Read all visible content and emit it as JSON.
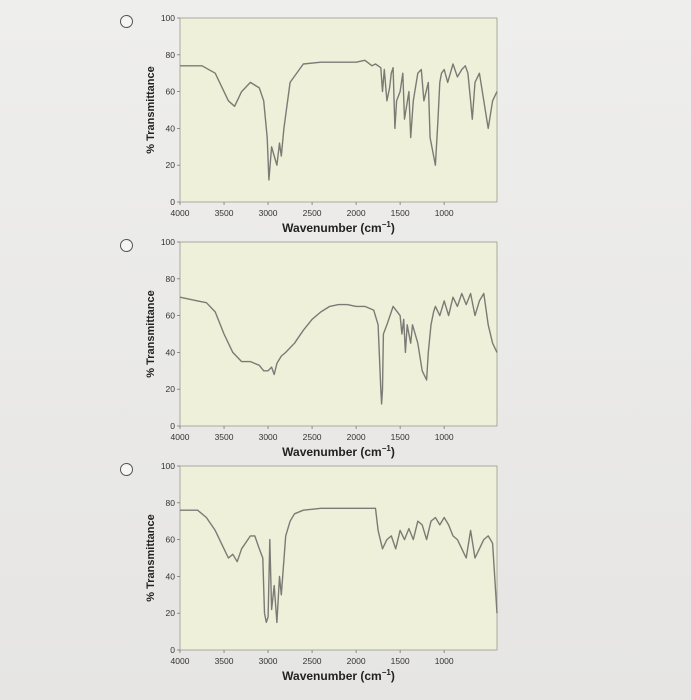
{
  "chart_data": [
    {
      "type": "line",
      "xlabel": "Wavenumber (cm",
      "xlabel_sup": "−1",
      "xlabel_close": ")",
      "ylabel": "% Transmittance",
      "xlim": [
        4000,
        400
      ],
      "ylim": [
        0,
        100
      ],
      "xticks": [
        "4000",
        "3500",
        "3000",
        "2500",
        "2000",
        "1500",
        "1000"
      ],
      "yticks": [
        "0",
        "20",
        "40",
        "60",
        "80",
        "100"
      ],
      "grid": false,
      "series": [
        {
          "x": [
            4000,
            3750,
            3600,
            3450,
            3380,
            3300,
            3200,
            3100,
            3050,
            3010,
            2990,
            2960,
            2930,
            2900,
            2870,
            2850,
            2820,
            2750,
            2600,
            2400,
            2200,
            2000,
            1900,
            1820,
            1780,
            1720,
            1700,
            1680,
            1650,
            1620,
            1600,
            1580,
            1560,
            1540,
            1500,
            1470,
            1450,
            1400,
            1380,
            1350,
            1300,
            1260,
            1230,
            1180,
            1160,
            1100,
            1070,
            1050,
            1030,
            1000,
            960,
            900,
            850,
            800,
            760,
            730,
            700,
            680,
            650,
            600,
            550,
            500,
            450,
            400
          ],
          "y": [
            74,
            74,
            70,
            55,
            52,
            60,
            65,
            62,
            55,
            35,
            12,
            30,
            25,
            20,
            32,
            25,
            40,
            65,
            75,
            76,
            76,
            76,
            77,
            74,
            75,
            73,
            60,
            72,
            55,
            62,
            70,
            73,
            40,
            55,
            60,
            70,
            45,
            60,
            35,
            55,
            70,
            72,
            55,
            65,
            35,
            20,
            45,
            65,
            70,
            72,
            65,
            75,
            68,
            72,
            74,
            70,
            55,
            45,
            65,
            70,
            55,
            40,
            55,
            60
          ]
        }
      ]
    },
    {
      "type": "line",
      "xlabel": "Wavenumber (cm",
      "xlabel_sup": "−1",
      "xlabel_close": ")",
      "ylabel": "% Transmittance",
      "xlim": [
        4000,
        400
      ],
      "ylim": [
        0,
        100
      ],
      "xticks": [
        "4000",
        "3500",
        "3000",
        "2500",
        "2000",
        "1500",
        "1000"
      ],
      "yticks": [
        "0",
        "20",
        "40",
        "60",
        "80",
        "100"
      ],
      "grid": false,
      "series": [
        {
          "x": [
            4000,
            3800,
            3700,
            3600,
            3500,
            3400,
            3300,
            3200,
            3100,
            3050,
            3000,
            2960,
            2930,
            2900,
            2850,
            2800,
            2700,
            2600,
            2500,
            2400,
            2300,
            2200,
            2100,
            2000,
            1900,
            1800,
            1750,
            1720,
            1710,
            1700,
            1690,
            1650,
            1600,
            1580,
            1500,
            1480,
            1460,
            1440,
            1420,
            1400,
            1380,
            1360,
            1300,
            1250,
            1200,
            1180,
            1150,
            1120,
            1100,
            1050,
            1000,
            950,
            900,
            850,
            800,
            750,
            700,
            650,
            600,
            550,
            500,
            450,
            400
          ],
          "y": [
            70,
            68,
            67,
            62,
            50,
            40,
            35,
            35,
            33,
            30,
            30,
            32,
            28,
            34,
            38,
            40,
            45,
            52,
            58,
            62,
            65,
            66,
            66,
            65,
            65,
            63,
            55,
            20,
            12,
            20,
            50,
            55,
            62,
            65,
            60,
            50,
            58,
            40,
            55,
            50,
            45,
            55,
            45,
            30,
            25,
            40,
            55,
            62,
            65,
            60,
            68,
            60,
            70,
            65,
            72,
            66,
            72,
            60,
            68,
            72,
            55,
            45,
            40
          ]
        }
      ]
    },
    {
      "type": "line",
      "xlabel": "Wavenumber (cm",
      "xlabel_sup": "−1",
      "xlabel_close": ")",
      "ylabel": "% Transmittance",
      "xlim": [
        4000,
        400
      ],
      "ylim": [
        0,
        100
      ],
      "xticks": [
        "4000",
        "3500",
        "3000",
        "2500",
        "2000",
        "1500",
        "1000"
      ],
      "yticks": [
        "0",
        "20",
        "40",
        "60",
        "80",
        "100"
      ],
      "grid": false,
      "series": [
        {
          "x": [
            4000,
            3800,
            3700,
            3600,
            3500,
            3450,
            3400,
            3350,
            3300,
            3200,
            3150,
            3100,
            3060,
            3040,
            3020,
            3000,
            2980,
            2960,
            2930,
            2900,
            2870,
            2850,
            2800,
            2750,
            2700,
            2600,
            2400,
            2200,
            2100,
            2000,
            1950,
            1900,
            1850,
            1800,
            1780,
            1750,
            1700,
            1650,
            1600,
            1550,
            1500,
            1450,
            1400,
            1350,
            1300,
            1250,
            1200,
            1150,
            1100,
            1050,
            1000,
            950,
            900,
            850,
            800,
            750,
            700,
            650,
            600,
            550,
            500,
            450,
            400
          ],
          "y": [
            76,
            76,
            72,
            65,
            55,
            50,
            52,
            48,
            55,
            62,
            62,
            55,
            50,
            20,
            15,
            18,
            60,
            22,
            35,
            15,
            40,
            30,
            62,
            70,
            74,
            76,
            77,
            77,
            77,
            77,
            77,
            77,
            77,
            77,
            77,
            65,
            55,
            60,
            62,
            55,
            65,
            60,
            66,
            60,
            70,
            68,
            60,
            70,
            72,
            68,
            72,
            68,
            62,
            60,
            55,
            50,
            65,
            50,
            55,
            60,
            62,
            58,
            20
          ]
        }
      ]
    }
  ]
}
